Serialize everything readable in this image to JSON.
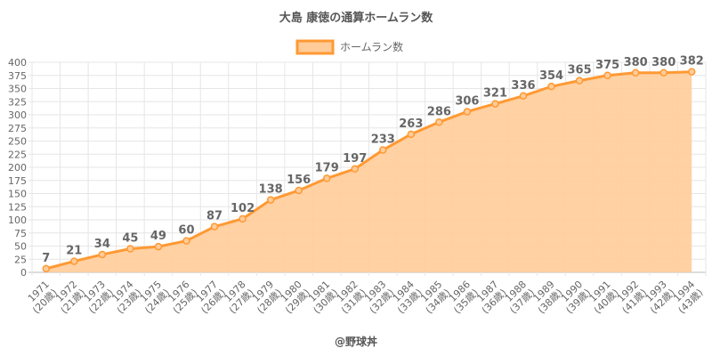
{
  "chart_data": {
    "type": "area",
    "title": "大島 康徳の通算ホームラン数",
    "legend": {
      "label": "ホームラン数",
      "placement": "top-center"
    },
    "categories": [
      "1971",
      "1972",
      "1973",
      "1974",
      "1975",
      "1976",
      "1977",
      "1978",
      "1979",
      "1980",
      "1981",
      "1982",
      "1983",
      "1984",
      "1985",
      "1986",
      "1987",
      "1988",
      "1989",
      "1990",
      "1991",
      "1992",
      "1993",
      "1994"
    ],
    "ages": [
      "(20歳)",
      "(21歳)",
      "(22歳)",
      "(23歳)",
      "(24歳)",
      "(25歳)",
      "(26歳)",
      "(27歳)",
      "(28歳)",
      "(29歳)",
      "(30歳)",
      "(31歳)",
      "(32歳)",
      "(33歳)",
      "(34歳)",
      "(35歳)",
      "(36歳)",
      "(37歳)",
      "(38歳)",
      "(39歳)",
      "(40歳)",
      "(41歳)",
      "(42歳)",
      "(43歳)"
    ],
    "values": [
      7,
      21,
      34,
      45,
      49,
      60,
      87,
      102,
      138,
      156,
      179,
      197,
      233,
      263,
      286,
      306,
      321,
      336,
      354,
      365,
      375,
      380,
      380,
      382
    ],
    "ylim": [
      0,
      400
    ],
    "yticks": [
      0,
      25,
      50,
      75,
      100,
      125,
      150,
      175,
      200,
      225,
      250,
      275,
      300,
      325,
      350,
      375,
      400
    ],
    "grid": true,
    "colors": {
      "line": "#ff9933",
      "fill": "#ffcc99"
    }
  },
  "footer": "@野球丼"
}
